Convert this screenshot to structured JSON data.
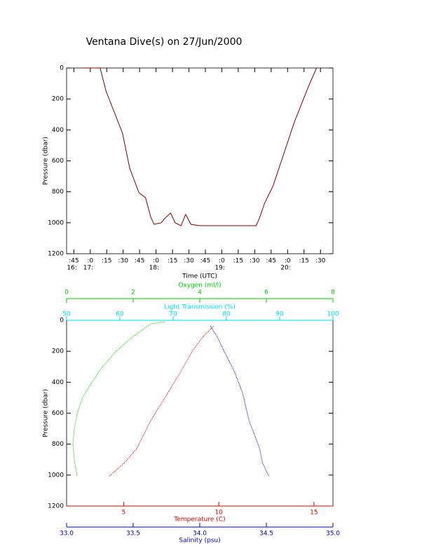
{
  "chart_data": [
    {
      "type": "line",
      "title": "Ventana Dive(s) on 27/Jun/2000",
      "x_label": "Time (UTC)",
      "y_label": "Pressure (dbar)",
      "xlim": [
        16.64,
        20.69
      ],
      "xticks": [
        {
          "value": 16.75,
          "label": ":45"
        },
        {
          "value": 17,
          "label": ":0"
        },
        {
          "value": 17.25,
          "label": ":15"
        },
        {
          "value": 17.5,
          "label": ":30"
        },
        {
          "value": 17.75,
          "label": ":45"
        },
        {
          "value": 18,
          "label": ":0"
        },
        {
          "value": 18.25,
          "label": ":15"
        },
        {
          "value": 18.5,
          "label": ":30"
        },
        {
          "value": 18.75,
          "label": ":45"
        },
        {
          "value": 19,
          "label": ":0"
        },
        {
          "value": 19.25,
          "label": ":15"
        },
        {
          "value": 19.5,
          "label": ":30"
        },
        {
          "value": 19.75,
          "label": ":45"
        },
        {
          "value": 20,
          "label": ":0"
        },
        {
          "value": 20.25,
          "label": ":15"
        },
        {
          "value": 20.5,
          "label": ":30"
        }
      ],
      "hour_labels": [
        {
          "value": 16.75,
          "label": "16:"
        },
        {
          "value": 17,
          "label": "17:"
        },
        {
          "value": 18,
          "label": "18:"
        },
        {
          "value": 19,
          "label": "19:"
        },
        {
          "value": 20,
          "label": "20:"
        }
      ],
      "ylim": [
        0,
        1200
      ],
      "y_reversed": true,
      "yticks": [
        0,
        200,
        400,
        600,
        800,
        1000,
        1200
      ],
      "color": "#800000",
      "x": [
        16.89,
        17.15,
        17.24,
        17.49,
        17.6,
        17.74,
        17.84,
        17.92,
        17.97,
        18.08,
        18.13,
        18.22,
        18.29,
        18.38,
        18.45,
        18.53,
        18.66,
        19.52,
        19.57,
        19.65,
        19.78,
        19.94,
        20.1,
        20.31,
        20.44
      ],
      "values": [
        0,
        0,
        150,
        421,
        648,
        806,
        838,
        964,
        1010,
        1000,
        973,
        937,
        1000,
        1019,
        946,
        1010,
        1019,
        1019,
        973,
        874,
        761,
        557,
        353,
        127,
        0
      ]
    },
    {
      "type": "profile",
      "y_label": "Pressure (dbar)",
      "ylim": [
        0,
        1200
      ],
      "y_reversed": true,
      "yticks": [
        0,
        200,
        400,
        600,
        800,
        1000,
        1200
      ],
      "x_axes": [
        {
          "label": "Oxygen (ml/l)",
          "color": "#00cc00",
          "position": "top-outer",
          "xlim": [
            0,
            8
          ],
          "xticks": [
            0,
            2,
            4,
            6,
            8
          ]
        },
        {
          "label": "Light Transmission (%)",
          "color": "#00e0e0",
          "position": "top",
          "xlim": [
            50,
            100
          ],
          "xticks": [
            50,
            60,
            70,
            80,
            90,
            100
          ]
        },
        {
          "label": "Temperature (C)",
          "color": "#dd0000",
          "position": "bottom",
          "xlim": [
            2,
            16
          ],
          "xticks": [
            5,
            10,
            15
          ]
        },
        {
          "label": "Salinity (psu)",
          "color": "#0000cc",
          "position": "bottom-outer",
          "xlim": [
            33,
            35
          ],
          "xticks": [
            {
              "value": 33,
              "label": "33.0"
            },
            33.5,
            {
              "value": 34,
              "label": "34.0"
            },
            34.5,
            {
              "value": 35,
              "label": "35.0"
            }
          ]
        }
      ],
      "series": [
        {
          "axis": 0,
          "color": "#00cc00",
          "pressure": [
            10,
            23,
            104,
            204,
            308,
            408,
            498,
            602,
            702,
            801,
            900,
            1010
          ],
          "values": [
            2.95,
            2.53,
            2.0,
            1.47,
            1.05,
            0.74,
            0.48,
            0.32,
            0.23,
            0.19,
            0.23,
            0.32
          ]
        },
        {
          "axis": 2,
          "color": "#dd0000",
          "pressure": [
            36,
            59,
            104,
            195,
            331,
            466,
            648,
            829,
            919,
            1010
          ],
          "values": [
            9.74,
            9.55,
            9.18,
            8.63,
            8.0,
            7.34,
            6.42,
            5.68,
            5.06,
            4.21
          ]
        },
        {
          "axis": 3,
          "color": "#0000cc",
          "pressure": [
            36,
            104,
            195,
            331,
            466,
            648,
            829,
            919,
            1010
          ],
          "values": [
            34.08,
            34.13,
            34.18,
            34.26,
            34.32,
            34.37,
            34.45,
            34.47,
            34.52
          ]
        }
      ]
    }
  ]
}
